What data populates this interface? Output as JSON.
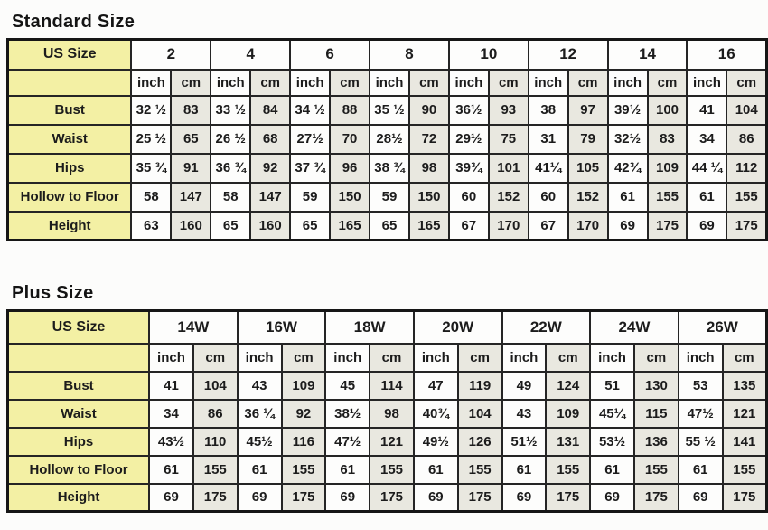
{
  "standard": {
    "title": "Standard Size",
    "corner_label": "US Size",
    "unit_labels": [
      "inch",
      "cm"
    ],
    "sizes": [
      "2",
      "4",
      "6",
      "8",
      "10",
      "12",
      "14",
      "16"
    ],
    "rows": [
      {
        "label": "Bust",
        "values": [
          "32 ½",
          "83",
          "33 ½",
          "84",
          "34 ½",
          "88",
          "35 ½",
          "90",
          "36½",
          "93",
          "38",
          "97",
          "39½",
          "100",
          "41",
          "104"
        ]
      },
      {
        "label": "Waist",
        "values": [
          "25 ½",
          "65",
          "26 ½",
          "68",
          "27½",
          "70",
          "28½",
          "72",
          "29½",
          "75",
          "31",
          "79",
          "32½",
          "83",
          "34",
          "86"
        ]
      },
      {
        "label": "Hips",
        "values": [
          "35 ¾",
          "91",
          "36 ¾",
          "92",
          "37 ¾",
          "96",
          "38 ¾",
          "98",
          "39¾",
          "101",
          "41¼",
          "105",
          "42¾",
          "109",
          "44 ¼",
          "112"
        ]
      },
      {
        "label": "Hollow to Floor",
        "values": [
          "58",
          "147",
          "58",
          "147",
          "59",
          "150",
          "59",
          "150",
          "60",
          "152",
          "60",
          "152",
          "61",
          "155",
          "61",
          "155"
        ]
      },
      {
        "label": "Height",
        "values": [
          "63",
          "160",
          "65",
          "160",
          "65",
          "165",
          "65",
          "165",
          "67",
          "170",
          "67",
          "170",
          "69",
          "175",
          "69",
          "175"
        ]
      }
    ]
  },
  "plus": {
    "title": "Plus Size",
    "corner_label": "US Size",
    "unit_labels": [
      "inch",
      "cm"
    ],
    "sizes": [
      "14W",
      "16W",
      "18W",
      "20W",
      "22W",
      "24W",
      "26W"
    ],
    "rows": [
      {
        "label": "Bust",
        "values": [
          "41",
          "104",
          "43",
          "109",
          "45",
          "114",
          "47",
          "119",
          "49",
          "124",
          "51",
          "130",
          "53",
          "135"
        ]
      },
      {
        "label": "Waist",
        "values": [
          "34",
          "86",
          "36 ¼",
          "92",
          "38½",
          "98",
          "40¾",
          "104",
          "43",
          "109",
          "45¼",
          "115",
          "47½",
          "121"
        ]
      },
      {
        "label": "Hips",
        "values": [
          "43½",
          "110",
          "45½",
          "116",
          "47½",
          "121",
          "49½",
          "126",
          "51½",
          "131",
          "53½",
          "136",
          "55 ½",
          "141"
        ]
      },
      {
        "label": "Hollow to Floor",
        "values": [
          "61",
          "155",
          "61",
          "155",
          "61",
          "155",
          "61",
          "155",
          "61",
          "155",
          "61",
          "155",
          "61",
          "155"
        ]
      },
      {
        "label": "Height",
        "values": [
          "69",
          "175",
          "69",
          "175",
          "69",
          "175",
          "69",
          "175",
          "69",
          "175",
          "69",
          "175",
          "69",
          "175"
        ]
      }
    ]
  },
  "colors": {
    "label_background": "#f3f0a4",
    "cm_column_background": "#e9e8e0",
    "inch_column_background": "#fdfdfc",
    "border": "#252525",
    "text": "#1c1c1c",
    "page_background": "#fcfcfb"
  }
}
